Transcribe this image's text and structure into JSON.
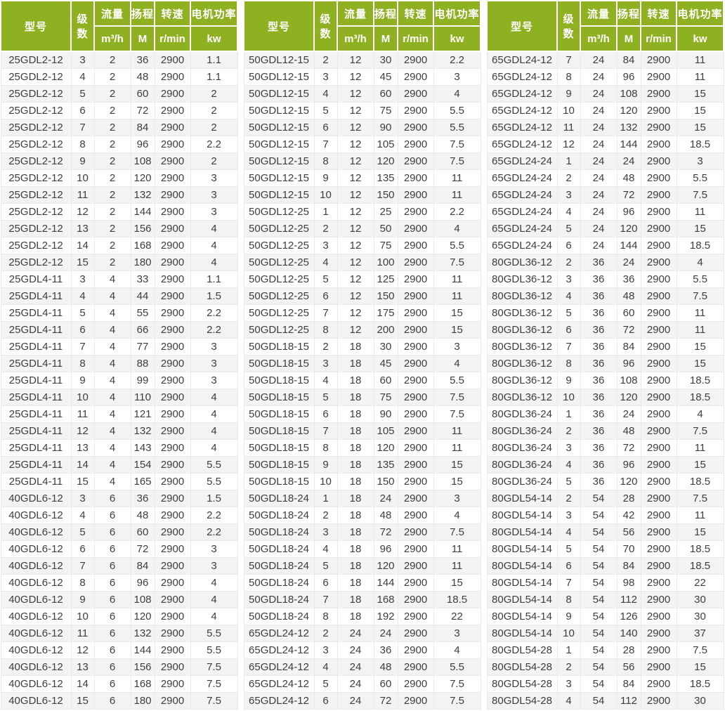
{
  "colors": {
    "header_bg": "#8FB021",
    "header_text": "#FFFFFF",
    "row_stripe": "#F3F3F1",
    "row_white": "#FFFFFF",
    "grid_line": "#E9E9E7",
    "text": "#3D3D3D"
  },
  "columns": {
    "model": "型号",
    "stages": "级数",
    "flow": "流量",
    "flow_unit": "m³/h",
    "head": "扬程",
    "head_unit": "M",
    "speed": "转速",
    "speed_unit": "r/min",
    "power": "电机功率",
    "power_unit": "kw"
  },
  "tables": [
    {
      "position": "left",
      "rows": [
        [
          "25GDL2-12",
          3,
          2,
          36,
          2900,
          1.1
        ],
        [
          "25GDL2-12",
          4,
          2,
          48,
          2900,
          1.1
        ],
        [
          "25GDL2-12",
          5,
          2,
          60,
          2900,
          2
        ],
        [
          "25GDL2-12",
          6,
          2,
          72,
          2900,
          2
        ],
        [
          "25GDL2-12",
          7,
          2,
          84,
          2900,
          2
        ],
        [
          "25GDL2-12",
          8,
          2,
          96,
          2900,
          2.2
        ],
        [
          "25GDL2-12",
          9,
          2,
          108,
          2900,
          2
        ],
        [
          "25GDL2-12",
          10,
          2,
          120,
          2900,
          3
        ],
        [
          "25GDL2-12",
          11,
          2,
          132,
          2900,
          3
        ],
        [
          "25GDL2-12",
          12,
          2,
          144,
          2900,
          3
        ],
        [
          "25GDL2-12",
          13,
          2,
          156,
          2900,
          4
        ],
        [
          "25GDL2-12",
          14,
          2,
          168,
          2900,
          4
        ],
        [
          "25GDL2-12",
          15,
          2,
          180,
          2900,
          4
        ],
        [
          "25GDL4-11",
          3,
          4,
          33,
          2900,
          1.1
        ],
        [
          "25GDL4-11",
          4,
          4,
          44,
          2900,
          1.5
        ],
        [
          "25GDL4-11",
          5,
          4,
          55,
          2900,
          2.2
        ],
        [
          "25GDL4-11",
          6,
          4,
          66,
          2900,
          2.2
        ],
        [
          "25GDL4-11",
          7,
          4,
          77,
          2900,
          3
        ],
        [
          "25GDL4-11",
          8,
          4,
          88,
          2900,
          3
        ],
        [
          "25GDL4-11",
          9,
          4,
          99,
          2900,
          3
        ],
        [
          "25GDL4-11",
          10,
          4,
          110,
          2900,
          4
        ],
        [
          "25GDL4-11",
          11,
          4,
          121,
          2900,
          4
        ],
        [
          "25GDL4-11",
          12,
          4,
          132,
          2900,
          4
        ],
        [
          "25GDL4-11",
          13,
          4,
          143,
          2900,
          4
        ],
        [
          "25GDL4-11",
          14,
          4,
          154,
          2900,
          5.5
        ],
        [
          "25GDL4-11",
          15,
          4,
          165,
          2900,
          5.5
        ],
        [
          "40GDL6-12",
          3,
          6,
          36,
          2900,
          1.5
        ],
        [
          "40GDL6-12",
          4,
          6,
          48,
          2900,
          2.2
        ],
        [
          "40GDL6-12",
          5,
          6,
          60,
          2900,
          2.2
        ],
        [
          "40GDL6-12",
          6,
          6,
          72,
          2900,
          3
        ],
        [
          "40GDL6-12",
          7,
          6,
          84,
          2900,
          3
        ],
        [
          "40GDL6-12",
          8,
          6,
          96,
          2900,
          4
        ],
        [
          "40GDL6-12",
          9,
          6,
          108,
          2900,
          4
        ],
        [
          "40GDL6-12",
          10,
          6,
          120,
          2900,
          4
        ],
        [
          "40GDL6-12",
          11,
          6,
          132,
          2900,
          5.5
        ],
        [
          "40GDL6-12",
          12,
          6,
          144,
          2900,
          5.5
        ],
        [
          "40GDL6-12",
          13,
          6,
          156,
          2900,
          7.5
        ],
        [
          "40GDL6-12",
          14,
          6,
          168,
          2900,
          7.5
        ],
        [
          "40GDL6-12",
          15,
          6,
          180,
          2900,
          7.5
        ]
      ]
    },
    {
      "position": "middle",
      "rows": [
        [
          "50GDL12-15",
          2,
          12,
          30,
          2900,
          2.2
        ],
        [
          "50GDL12-15",
          3,
          12,
          45,
          2900,
          3
        ],
        [
          "50GDL12-15",
          4,
          12,
          60,
          2900,
          4
        ],
        [
          "50GDL12-15",
          5,
          12,
          75,
          2900,
          5.5
        ],
        [
          "50GDL12-15",
          6,
          12,
          90,
          2900,
          5.5
        ],
        [
          "50GDL12-15",
          7,
          12,
          105,
          2900,
          7.5
        ],
        [
          "50GDL12-15",
          8,
          12,
          120,
          2900,
          7.5
        ],
        [
          "50GDL12-15",
          9,
          12,
          135,
          2900,
          11
        ],
        [
          "50GDL12-15",
          10,
          12,
          150,
          2900,
          11
        ],
        [
          "50GDL12-25",
          1,
          12,
          25,
          2900,
          2.2
        ],
        [
          "50GDL12-25",
          2,
          12,
          50,
          2900,
          4
        ],
        [
          "50GDL12-25",
          3,
          12,
          75,
          2900,
          5.5
        ],
        [
          "50GDL12-25",
          4,
          12,
          100,
          2900,
          7.5
        ],
        [
          "50GDL12-25",
          5,
          12,
          125,
          2900,
          11
        ],
        [
          "50GDL12-25",
          6,
          12,
          150,
          2900,
          11
        ],
        [
          "50GDL12-25",
          7,
          12,
          175,
          2900,
          15
        ],
        [
          "50GDL12-25",
          8,
          12,
          200,
          2900,
          15
        ],
        [
          "50GDL18-15",
          2,
          18,
          30,
          2900,
          3
        ],
        [
          "50GDL18-15",
          3,
          18,
          45,
          2900,
          4
        ],
        [
          "50GDL18-15",
          4,
          18,
          60,
          2900,
          5.5
        ],
        [
          "50GDL18-15",
          5,
          18,
          75,
          2900,
          7.5
        ],
        [
          "50GDL18-15",
          6,
          18,
          90,
          2900,
          7.5
        ],
        [
          "50GDL18-15",
          7,
          18,
          105,
          2900,
          11
        ],
        [
          "50GDL18-15",
          8,
          18,
          120,
          2900,
          11
        ],
        [
          "50GDL18-15",
          9,
          18,
          135,
          2900,
          15
        ],
        [
          "50GDL18-15",
          10,
          18,
          150,
          2900,
          15
        ],
        [
          "50GDL18-24",
          1,
          18,
          24,
          2900,
          3
        ],
        [
          "50GDL18-24",
          2,
          18,
          48,
          2900,
          4
        ],
        [
          "50GDL18-24",
          3,
          18,
          72,
          2900,
          7.5
        ],
        [
          "50GDL18-24",
          4,
          18,
          96,
          2900,
          11
        ],
        [
          "50GDL18-24",
          5,
          18,
          120,
          2900,
          11
        ],
        [
          "50GDL18-24",
          6,
          18,
          144,
          2900,
          15
        ],
        [
          "50GDL18-24",
          7,
          18,
          168,
          2900,
          18.5
        ],
        [
          "50GDL18-24",
          8,
          18,
          192,
          2900,
          22
        ],
        [
          "65GDL24-12",
          2,
          24,
          24,
          2900,
          3
        ],
        [
          "65GDL24-12",
          3,
          24,
          36,
          2900,
          4
        ],
        [
          "65GDL24-12",
          4,
          24,
          48,
          2900,
          5.5
        ],
        [
          "65GDL24-12",
          5,
          24,
          60,
          2900,
          7.5
        ],
        [
          "65GDL24-12",
          6,
          24,
          72,
          2900,
          7.5
        ]
      ]
    },
    {
      "position": "right",
      "rows": [
        [
          "65GDL24-12",
          7,
          24,
          84,
          2900,
          11
        ],
        [
          "65GDL24-12",
          8,
          24,
          96,
          2900,
          11
        ],
        [
          "65GDL24-12",
          9,
          24,
          108,
          2900,
          15
        ],
        [
          "65GDL24-12",
          10,
          24,
          120,
          2900,
          15
        ],
        [
          "65GDL24-12",
          11,
          24,
          132,
          2900,
          15
        ],
        [
          "65GDL24-12",
          12,
          24,
          144,
          2900,
          18.5
        ],
        [
          "65GDL24-24",
          1,
          24,
          24,
          2900,
          3
        ],
        [
          "65GDL24-24",
          2,
          24,
          48,
          2900,
          5.5
        ],
        [
          "65GDL24-24",
          3,
          24,
          72,
          2900,
          7.5
        ],
        [
          "65GDL24-24",
          4,
          24,
          96,
          2900,
          11
        ],
        [
          "65GDL24-24",
          5,
          24,
          120,
          2900,
          15
        ],
        [
          "65GDL24-24",
          6,
          24,
          144,
          2900,
          18.5
        ],
        [
          "80GDL36-12",
          2,
          36,
          24,
          2900,
          4
        ],
        [
          "80GDL36-12",
          3,
          36,
          36,
          2900,
          5.5
        ],
        [
          "80GDL36-12",
          4,
          36,
          48,
          2900,
          7.5
        ],
        [
          "80GDL36-12",
          5,
          36,
          60,
          2900,
          11
        ],
        [
          "80GDL36-12",
          6,
          36,
          72,
          2900,
          11
        ],
        [
          "80GDL36-12",
          7,
          36,
          84,
          2900,
          15
        ],
        [
          "80GDL36-12",
          8,
          36,
          96,
          2900,
          15
        ],
        [
          "80GDL36-12",
          9,
          36,
          108,
          2900,
          18.5
        ],
        [
          "80GDL36-12",
          10,
          36,
          120,
          2900,
          18.5
        ],
        [
          "80GDL36-24",
          1,
          36,
          24,
          2900,
          4
        ],
        [
          "80GDL36-24",
          2,
          36,
          48,
          2900,
          7.5
        ],
        [
          "80GDL36-24",
          3,
          36,
          72,
          2900,
          11
        ],
        [
          "80GDL36-24",
          4,
          36,
          96,
          2900,
          15
        ],
        [
          "80GDL36-24",
          5,
          36,
          120,
          2900,
          18.5
        ],
        [
          "80GDL54-14",
          2,
          54,
          28,
          2900,
          7.5
        ],
        [
          "80GDL54-14",
          3,
          54,
          42,
          2900,
          11
        ],
        [
          "80GDL54-14",
          4,
          54,
          56,
          2900,
          15
        ],
        [
          "80GDL54-14",
          5,
          54,
          70,
          2900,
          18.5
        ],
        [
          "80GDL54-14",
          6,
          54,
          84,
          2900,
          18.5
        ],
        [
          "80GDL54-14",
          7,
          54,
          98,
          2900,
          22
        ],
        [
          "80GDL54-14",
          8,
          54,
          112,
          2900,
          30
        ],
        [
          "80GDL54-14",
          9,
          54,
          126,
          2900,
          30
        ],
        [
          "80GDL54-14",
          10,
          54,
          140,
          2900,
          37
        ],
        [
          "80GDL54-28",
          1,
          54,
          28,
          2900,
          7.5
        ],
        [
          "80GDL54-28",
          2,
          54,
          56,
          2900,
          15
        ],
        [
          "80GDL54-28",
          3,
          54,
          84,
          2900,
          18.5
        ],
        [
          "80GDL54-28",
          4,
          54,
          112,
          2900,
          30
        ]
      ]
    }
  ]
}
